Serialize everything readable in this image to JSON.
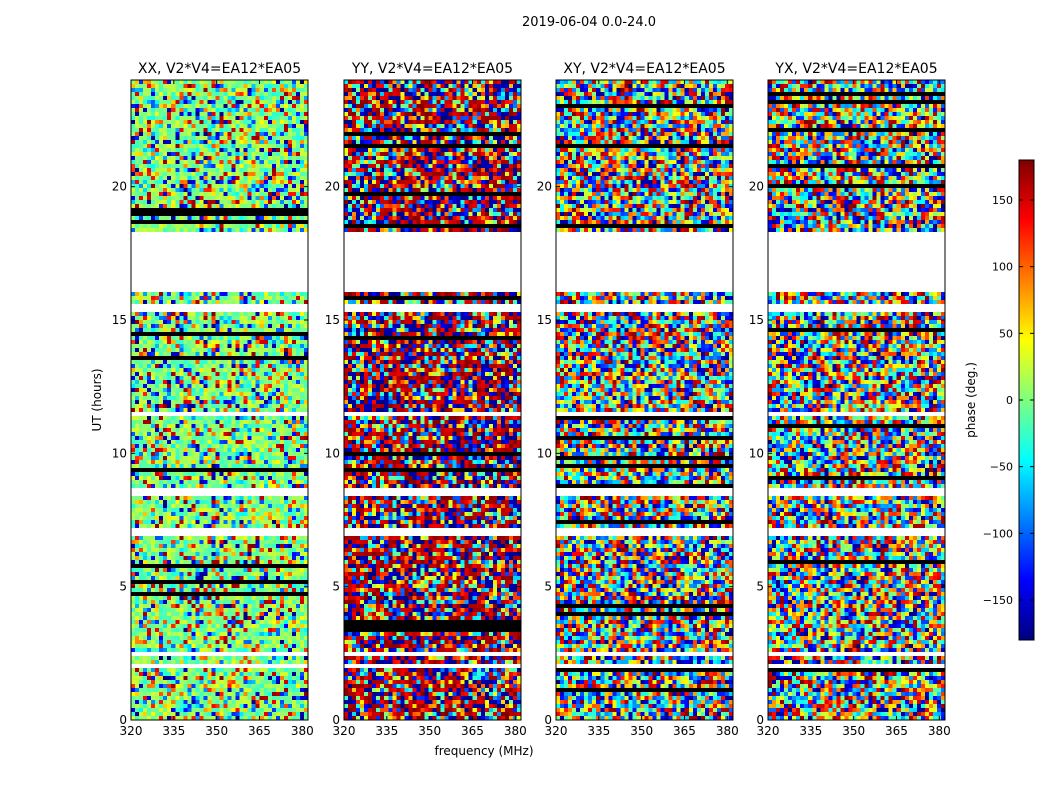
{
  "chart_data": {
    "type": "heatmap",
    "suptitle": "2019-06-04 0.0-24.0",
    "xlabel": "frequency (MHz)",
    "ylabel": "UT (hours)",
    "xlim": [
      320,
      382
    ],
    "ylim": [
      0,
      24
    ],
    "xticks": [
      320,
      335,
      350,
      365,
      380
    ],
    "yticks": [
      0,
      5,
      10,
      15,
      20
    ],
    "colormap": "jet",
    "colorbar": {
      "label": "phase (deg.)",
      "range": [
        -180,
        180
      ],
      "ticks": [
        -150,
        -100,
        -50,
        0,
        50,
        100,
        150
      ],
      "tick_labels": [
        "−150",
        "−100",
        "−50",
        "0",
        "50",
        "100",
        "150"
      ],
      "colors": [
        "#00007f",
        "#0000ff",
        "#007fff",
        "#00ffff",
        "#7fff7f",
        "#ffff00",
        "#ff7f00",
        "#ff0000",
        "#7f0000"
      ]
    },
    "flagged_gaps_hours": [
      [
        16.0,
        18.3
      ],
      [
        1.9,
        2.1
      ],
      [
        2.35,
        2.55
      ],
      [
        6.9,
        7.2
      ],
      [
        8.4,
        8.7
      ],
      [
        11.35,
        11.55
      ],
      [
        15.3,
        15.6
      ],
      [
        16.65,
        18.2
      ]
    ],
    "series": [
      {
        "name": "XX",
        "title": "XX, V2*V4=EA12*EA05",
        "dominant_phase_deg": 0,
        "coherence": 0.55
      },
      {
        "name": "YY",
        "title": "YY, V2*V4=EA12*EA05",
        "dominant_phase_deg": 170,
        "coherence": 0.45
      },
      {
        "name": "XY",
        "title": "XY, V2*V4=EA12*EA05",
        "dominant_phase_deg": null,
        "coherence": 0.0
      },
      {
        "name": "YX",
        "title": "YX, V2*V4=EA12*EA05",
        "dominant_phase_deg": null,
        "coherence": 0.0
      }
    ]
  }
}
